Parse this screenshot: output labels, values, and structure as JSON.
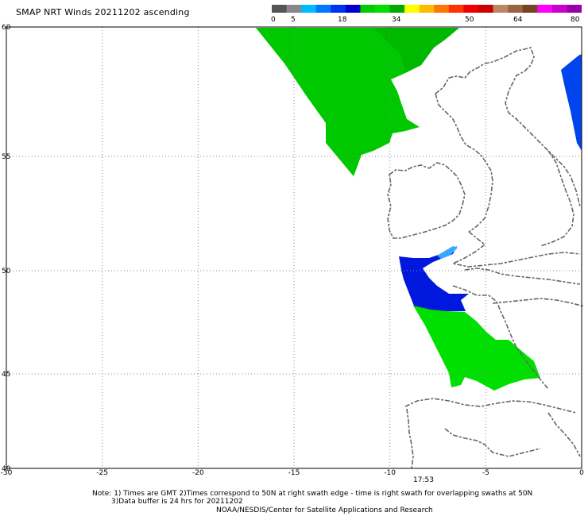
{
  "title": "SMAP NRT Winds 20211202 ascending",
  "colorbar": {
    "labels": [
      "0",
      "5",
      "18",
      "34",
      "50",
      "64",
      "80"
    ],
    "colors": [
      "#555555",
      "#888888",
      "#00bbff",
      "#0077ff",
      "#0033ee",
      "#0000cc",
      "#00cc00",
      "#00dd00",
      "#00aa00",
      "#ffff00",
      "#ffbb00",
      "#ff7700",
      "#ff3300",
      "#ee0000",
      "#cc0000",
      "#bb8866",
      "#996644",
      "#774422",
      "#ff00ff",
      "#cc00cc",
      "#9900aa"
    ]
  },
  "axes": {
    "lon_ticks": [
      "-30",
      "-25",
      "-20",
      "-15",
      "-10",
      "-5",
      "0"
    ],
    "lat_ticks": [
      "60",
      "55",
      "50",
      "45",
      "40"
    ],
    "lon_range": [
      -30,
      0
    ],
    "lat_range": [
      40,
      60
    ],
    "grid": "dotted"
  },
  "swath_time": "17:53",
  "notes": {
    "line1": "Note: 1) Times are GMT 2)Times correspond to 50N at right swath edge - time is right swath for overlapping swaths at 50N",
    "line2": "3)Data buffer is 24 hrs for 20211202",
    "line3": "NOAA/NESDIS/Center for Satellite Applications and Research"
  },
  "wind_regions": [
    {
      "name": "north-atlantic-green",
      "speed_band": "18-34",
      "color": "#00cc00"
    },
    {
      "name": "biscay-blue",
      "speed_band": "5-18",
      "color": "#0022dd"
    },
    {
      "name": "biscay-green",
      "speed_band": "18-34",
      "color": "#00dd00"
    },
    {
      "name": "north-sea-blue",
      "speed_band": "5-18",
      "color": "#0044ee"
    }
  ]
}
